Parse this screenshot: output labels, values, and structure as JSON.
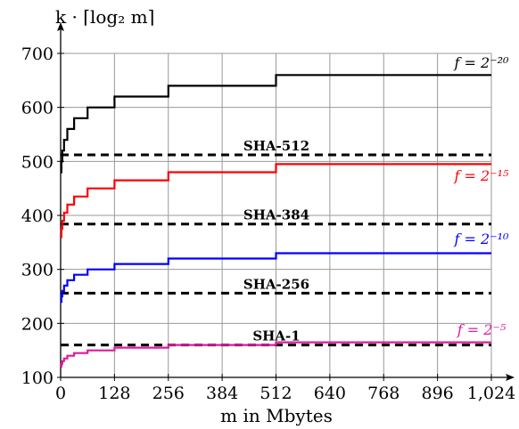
{
  "chart_data": {
    "type": "line",
    "title": "",
    "ylabel": "k · ⌈log₂ m⌉",
    "xlabel": "m in Mbytes",
    "xlim": [
      0,
      1024
    ],
    "ylim": [
      100,
      700
    ],
    "xticks": [
      0,
      128,
      256,
      384,
      512,
      640,
      768,
      896,
      1024
    ],
    "xtick_labels": [
      "0",
      "128",
      "256",
      "384",
      "512",
      "640",
      "768",
      "896",
      "1,024"
    ],
    "yticks": [
      100,
      200,
      300,
      400,
      500,
      600,
      700
    ],
    "ytick_labels": [
      "100",
      "200",
      "300",
      "400",
      "500",
      "600",
      "700"
    ],
    "grid": true,
    "series": [
      {
        "name": "f = 2⁻²⁰",
        "color": "#000000",
        "k": 20,
        "x": [
          1,
          2,
          4,
          8,
          16,
          32,
          64,
          128,
          256,
          512,
          1024
        ],
        "y": [
          480,
          500,
          520,
          540,
          560,
          580,
          600,
          620,
          640,
          660,
          660
        ]
      },
      {
        "name": "f = 2⁻¹⁵",
        "color": "#ff0000",
        "k": 15,
        "x": [
          1,
          2,
          4,
          8,
          16,
          32,
          64,
          128,
          256,
          512,
          1024
        ],
        "y": [
          360,
          375,
          390,
          405,
          420,
          435,
          450,
          465,
          480,
          495,
          495
        ]
      },
      {
        "name": "f = 2⁻¹⁰",
        "color": "#0000ff",
        "k": 10,
        "x": [
          1,
          2,
          4,
          8,
          16,
          32,
          64,
          128,
          256,
          512,
          1024
        ],
        "y": [
          240,
          250,
          260,
          270,
          280,
          290,
          300,
          310,
          320,
          330,
          330
        ]
      },
      {
        "name": "f = 2⁻⁵",
        "color": "#e0199a",
        "k": 5,
        "x": [
          1,
          2,
          4,
          8,
          16,
          32,
          64,
          128,
          256,
          512,
          1024
        ],
        "y": [
          120,
          125,
          130,
          135,
          140,
          145,
          150,
          155,
          160,
          165,
          165
        ]
      }
    ],
    "reference_lines": [
      {
        "label": "SHA-512",
        "y": 512
      },
      {
        "label": "SHA-384",
        "y": 384
      },
      {
        "label": "SHA-256",
        "y": 256
      },
      {
        "label": "SHA-1",
        "y": 160
      }
    ]
  }
}
